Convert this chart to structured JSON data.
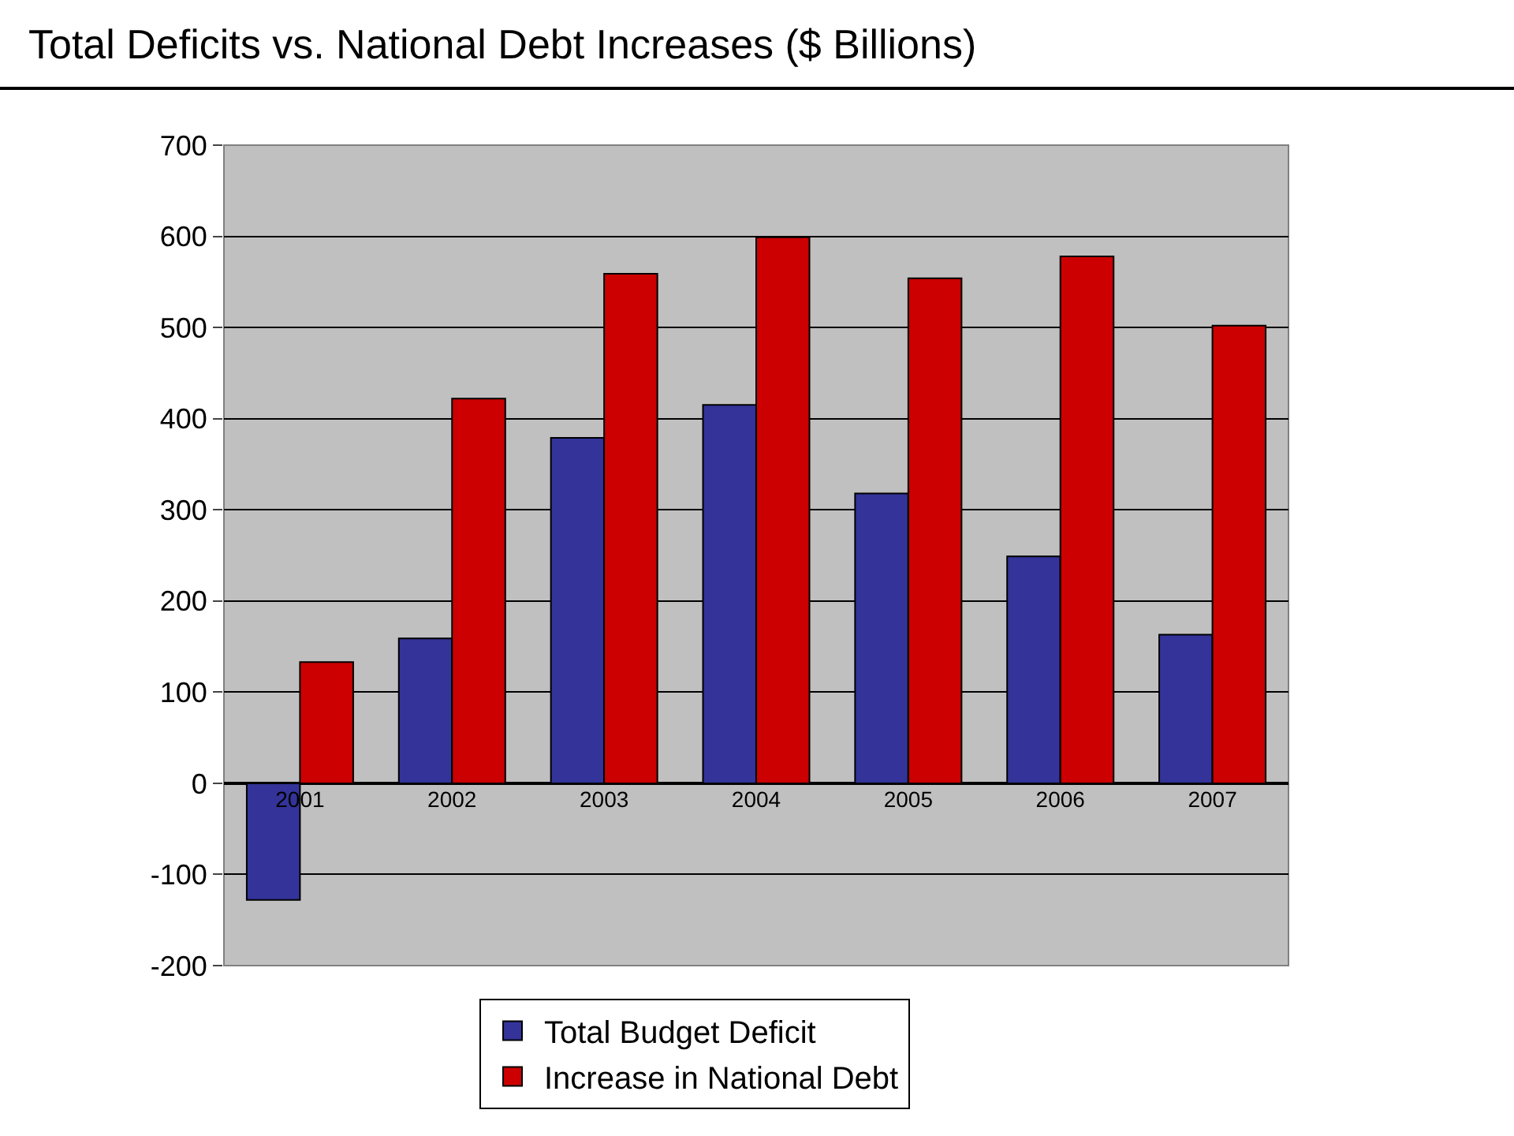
{
  "chart_data": {
    "type": "bar",
    "title": "Total Deficits vs. National Debt Increases ($ Billions)",
    "categories": [
      "2001",
      "2002",
      "2003",
      "2004",
      "2005",
      "2006",
      "2007"
    ],
    "series": [
      {
        "name": "Total Budget Deficit",
        "color": "#333399",
        "values": [
          -128,
          159,
          379,
          415,
          318,
          249,
          163
        ]
      },
      {
        "name": "Increase in National Debt",
        "color": "#cc0000",
        "values": [
          133,
          422,
          559,
          599,
          554,
          578,
          502
        ]
      }
    ],
    "ylim": [
      -200,
      700
    ],
    "yticks": [
      -200,
      -100,
      0,
      100,
      200,
      300,
      400,
      500,
      600,
      700
    ],
    "grid": "y",
    "legend": "bottom"
  }
}
